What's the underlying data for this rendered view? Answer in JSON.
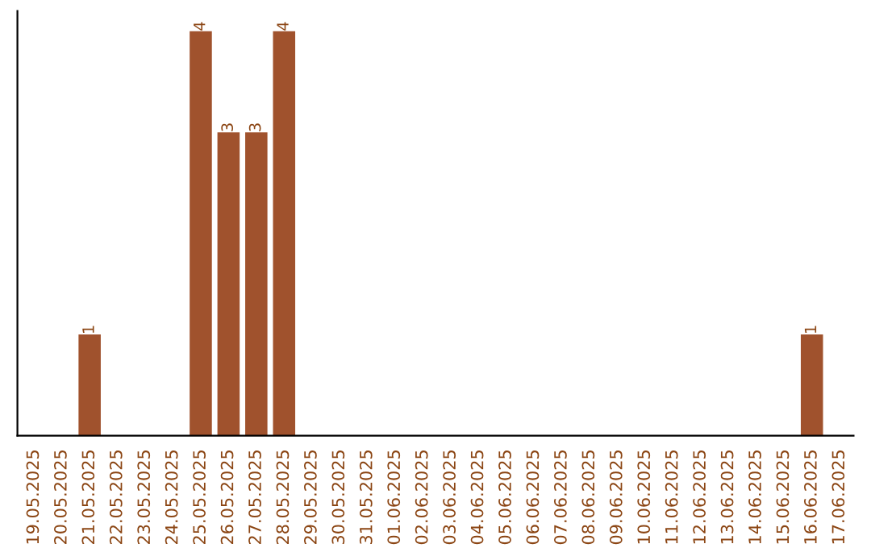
{
  "chart_data": {
    "type": "bar",
    "categories": [
      "19.05.2025",
      "20.05.2025",
      "21.05.2025",
      "22.05.2025",
      "23.05.2025",
      "24.05.2025",
      "25.05.2025",
      "26.05.2025",
      "27.05.2025",
      "28.05.2025",
      "29.05.2025",
      "30.05.2025",
      "31.05.2025",
      "01.06.2025",
      "02.06.2025",
      "03.06.2025",
      "04.06.2025",
      "05.06.2025",
      "06.06.2025",
      "07.06.2025",
      "08.06.2025",
      "09.06.2025",
      "10.06.2025",
      "11.06.2025",
      "12.06.2025",
      "13.06.2025",
      "14.06.2025",
      "15.06.2025",
      "16.06.2025",
      "17.06.2025"
    ],
    "values": [
      0,
      0,
      1,
      0,
      0,
      0,
      4,
      3,
      3,
      4,
      0,
      0,
      0,
      0,
      0,
      0,
      0,
      0,
      0,
      0,
      0,
      0,
      0,
      0,
      0,
      0,
      0,
      0,
      1,
      0
    ],
    "color": "#a0522d",
    "value_labels": [
      null,
      null,
      "1",
      null,
      null,
      null,
      "4",
      "3",
      "3",
      "4",
      null,
      null,
      null,
      null,
      null,
      null,
      null,
      null,
      null,
      null,
      null,
      null,
      null,
      null,
      null,
      null,
      null,
      null,
      "1",
      null
    ],
    "tick_labels": "x",
    "grid": false,
    "legend": false
  }
}
